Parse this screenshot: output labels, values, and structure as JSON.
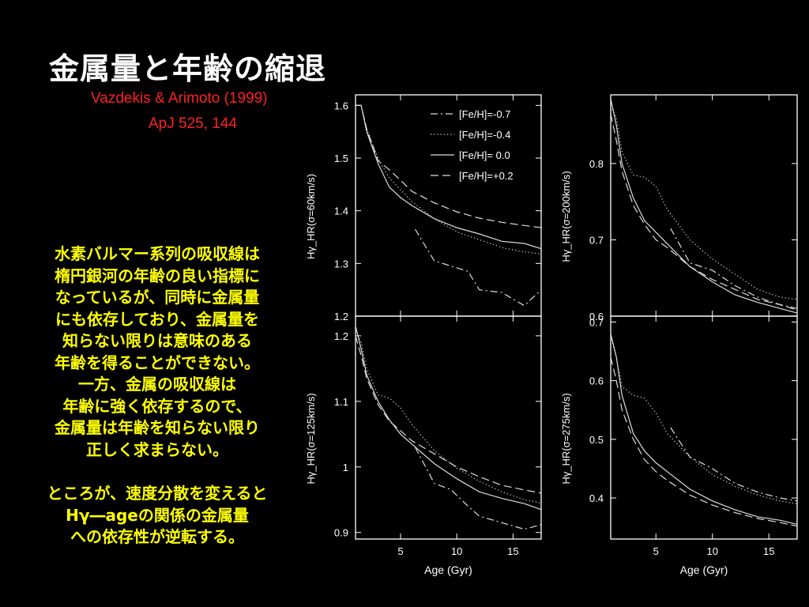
{
  "slide": {
    "title": "金属量と年齢の縮退",
    "reference_line1": "Vazdekis & Arimoto (1999)",
    "reference_line2": "ApJ 525, 144",
    "paragraph1": [
      "水素バルマー系列の吸収線は",
      "楕円銀河の年齢の良い指標に",
      "なっているが、同時に金属量",
      "にも依存しており、金属量を",
      "知らない限りは意味のある",
      "年齢を得ることができない。",
      "一方、金属の吸収線は",
      "年齢に強く依存するので、",
      "金属量は年齢を知らない限り",
      "正しく求まらない。"
    ],
    "paragraph2": [
      "ところが、速度分散を変えると",
      "Hγ―ageの関係の金属量",
      "への依存性が逆転する。"
    ],
    "colors": {
      "title": "#ffffff",
      "reference": "#ff2020",
      "body": "#ffff00",
      "plot_bg": "#000000",
      "axes": "#ffffff"
    }
  },
  "chart_data": [
    {
      "type": "line",
      "panel": "top-left",
      "ylabel": "Hγ_HR(σ=60km/s)",
      "xlim": [
        1,
        17.5
      ],
      "ylim": [
        1.2,
        1.62
      ],
      "yticks": [
        1.2,
        1.3,
        1.4,
        1.5,
        1.6
      ],
      "xticks": [],
      "legend": "top-right",
      "series": [
        {
          "name": "[Fe/H]=-0.7",
          "style": "dashdot",
          "x": [
            6.3,
            8,
            9.5,
            11,
            12,
            14,
            16,
            17.5
          ],
          "y": [
            1.365,
            1.305,
            1.295,
            1.285,
            1.25,
            1.245,
            1.22,
            1.25
          ]
        },
        {
          "name": "[Fe/H]=-0.4",
          "style": "dotted",
          "x": [
            1,
            1.5,
            2,
            3,
            4,
            5,
            6,
            8,
            10,
            12,
            14,
            16,
            17.5
          ],
          "y": [
            1.6,
            1.6,
            1.555,
            1.5,
            1.462,
            1.44,
            1.418,
            1.385,
            1.36,
            1.345,
            1.33,
            1.322,
            1.318
          ]
        },
        {
          "name": "[Fe/H]= 0.0",
          "style": "solid",
          "x": [
            1,
            1.5,
            2,
            3,
            4,
            5,
            6,
            8,
            10,
            12,
            14,
            16,
            17.5
          ],
          "y": [
            1.6,
            1.6,
            1.55,
            1.49,
            1.445,
            1.425,
            1.41,
            1.385,
            1.368,
            1.356,
            1.342,
            1.338,
            1.328
          ]
        },
        {
          "name": "[Fe/H]=+0.2",
          "style": "dashed",
          "x": [
            1,
            1.5,
            2,
            3,
            4,
            5,
            6,
            8,
            10,
            12,
            14,
            16,
            17.5
          ],
          "y": [
            1.6,
            1.6,
            1.555,
            1.495,
            1.478,
            1.458,
            1.437,
            1.415,
            1.398,
            1.386,
            1.378,
            1.372,
            1.368
          ]
        }
      ]
    },
    {
      "type": "line",
      "panel": "top-right",
      "ylabel": "Hγ_HR(σ=200km/s)",
      "xlim": [
        1,
        17.5
      ],
      "ylim": [
        0.6,
        0.89
      ],
      "yticks": [
        0.6,
        0.7,
        0.8
      ],
      "xticks": [],
      "series": [
        {
          "name": "[Fe/H]=-0.7",
          "style": "dashdot",
          "x": [
            6.3,
            8,
            10,
            12,
            14,
            16,
            17.5
          ],
          "y": [
            0.715,
            0.67,
            0.66,
            0.64,
            0.625,
            0.615,
            0.61
          ]
        },
        {
          "name": "[Fe/H]=-0.4",
          "style": "dotted",
          "x": [
            1,
            1.5,
            2,
            3,
            4,
            5,
            6,
            8,
            10,
            12,
            14,
            16,
            17.5
          ],
          "y": [
            0.875,
            0.86,
            0.815,
            0.785,
            0.782,
            0.77,
            0.74,
            0.7,
            0.675,
            0.655,
            0.635,
            0.625,
            0.622
          ]
        },
        {
          "name": "[Fe/H]= 0.0",
          "style": "solid",
          "x": [
            1,
            1.5,
            2,
            3,
            4,
            5,
            6,
            8,
            10,
            12,
            14,
            16,
            17.5
          ],
          "y": [
            0.885,
            0.85,
            0.8,
            0.755,
            0.725,
            0.71,
            0.695,
            0.665,
            0.645,
            0.628,
            0.618,
            0.61,
            0.604
          ]
        },
        {
          "name": "[Fe/H]=+0.2",
          "style": "dashed",
          "x": [
            1,
            1.5,
            2,
            3,
            4,
            5,
            6,
            8,
            10,
            12,
            14,
            16,
            17.5
          ],
          "y": [
            0.865,
            0.83,
            0.79,
            0.745,
            0.72,
            0.7,
            0.69,
            0.665,
            0.648,
            0.635,
            0.622,
            0.615,
            0.608
          ]
        }
      ]
    },
    {
      "type": "line",
      "panel": "bottom-left",
      "ylabel": "Hγ_HR(σ=125km/s)",
      "xlabel": "Age (Gyr)",
      "xlim": [
        1,
        17.5
      ],
      "ylim": [
        0.89,
        1.23
      ],
      "yticks": [
        0.9,
        1,
        1.1,
        1.2
      ],
      "xticks": [
        5,
        10,
        15
      ],
      "series": [
        {
          "name": "[Fe/H]=-0.7",
          "style": "dashdot",
          "x": [
            6.3,
            8,
            9.5,
            11,
            12,
            14,
            16,
            17.5
          ],
          "y": [
            1.03,
            0.975,
            0.965,
            0.94,
            0.925,
            0.915,
            0.905,
            0.912
          ]
        },
        {
          "name": "[Fe/H]=-0.4",
          "style": "dotted",
          "x": [
            1,
            1.5,
            2,
            3,
            4,
            5,
            6,
            8,
            10,
            12,
            14,
            16,
            17.5
          ],
          "y": [
            1.21,
            1.19,
            1.15,
            1.11,
            1.105,
            1.09,
            1.065,
            1.025,
            0.998,
            0.978,
            0.962,
            0.95,
            0.945
          ]
        },
        {
          "name": "[Fe/H]= 0.0",
          "style": "solid",
          "x": [
            1,
            1.5,
            2,
            3,
            4,
            5,
            6,
            8,
            10,
            12,
            14,
            16,
            17.5
          ],
          "y": [
            1.215,
            1.18,
            1.14,
            1.1,
            1.072,
            1.05,
            1.035,
            1.005,
            0.982,
            0.962,
            0.952,
            0.944,
            0.935
          ]
        },
        {
          "name": "[Fe/H]=+0.2",
          "style": "dashed",
          "x": [
            1,
            1.5,
            2,
            3,
            4,
            5,
            6,
            8,
            10,
            12,
            14,
            16,
            17.5
          ],
          "y": [
            1.2,
            1.17,
            1.135,
            1.095,
            1.07,
            1.055,
            1.04,
            1.02,
            1.0,
            0.985,
            0.972,
            0.965,
            0.96
          ]
        }
      ]
    },
    {
      "type": "line",
      "panel": "bottom-right",
      "ylabel": "Hγ_HR(σ=275km/s)",
      "xlabel": "Age (Gyr)",
      "xlim": [
        1,
        17.5
      ],
      "ylim": [
        0.33,
        0.71
      ],
      "yticks": [
        0.4,
        0.5,
        0.6,
        0.7
      ],
      "xticks": [
        5,
        10,
        15
      ],
      "series": [
        {
          "name": "[Fe/H]=-0.7",
          "style": "dashdot",
          "x": [
            6.3,
            8,
            10,
            12,
            14,
            16,
            17.5
          ],
          "y": [
            0.52,
            0.47,
            0.45,
            0.425,
            0.41,
            0.4,
            0.395
          ]
        },
        {
          "name": "[Fe/H]=-0.4",
          "style": "dotted",
          "x": [
            1,
            1.5,
            2,
            3,
            4,
            5,
            6,
            8,
            10,
            12,
            14,
            16,
            17.5
          ],
          "y": [
            0.675,
            0.64,
            0.59,
            0.575,
            0.57,
            0.545,
            0.51,
            0.47,
            0.44,
            0.42,
            0.405,
            0.395,
            0.39
          ]
        },
        {
          "name": "[Fe/H]= 0.0",
          "style": "solid",
          "x": [
            1,
            1.5,
            2,
            3,
            4,
            5,
            6,
            8,
            10,
            12,
            14,
            16,
            17.5
          ],
          "y": [
            0.68,
            0.64,
            0.575,
            0.51,
            0.48,
            0.46,
            0.445,
            0.415,
            0.395,
            0.38,
            0.368,
            0.362,
            0.355
          ]
        },
        {
          "name": "[Fe/H]=+0.2",
          "style": "dashed",
          "x": [
            1,
            1.5,
            2,
            3,
            4,
            5,
            6,
            8,
            10,
            12,
            14,
            16,
            17.5
          ],
          "y": [
            0.64,
            0.6,
            0.55,
            0.5,
            0.465,
            0.445,
            0.43,
            0.405,
            0.388,
            0.375,
            0.365,
            0.358,
            0.352
          ]
        }
      ]
    }
  ]
}
